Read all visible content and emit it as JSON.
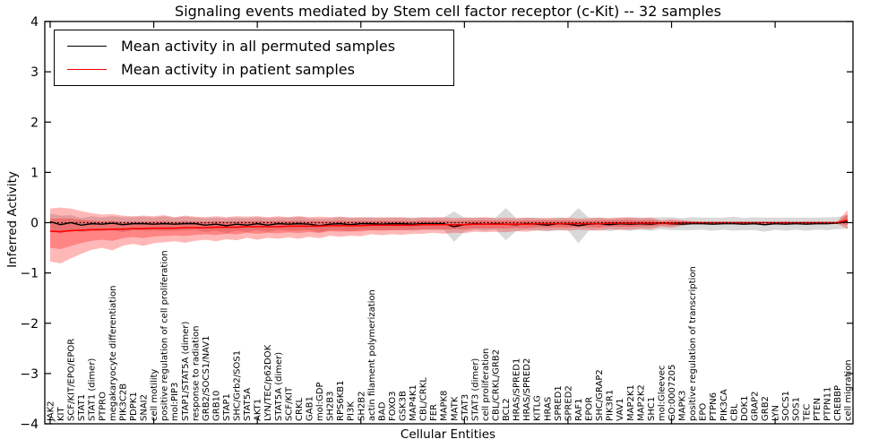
{
  "chart_data": {
    "type": "line",
    "title": "Signaling events mediated by Stem cell factor receptor (c-Kit) -- 32 samples",
    "xlabel": "Cellular Entities",
    "ylabel": "Inferred Activity",
    "ylim": [
      -4,
      4
    ],
    "yticks": [
      4,
      3,
      2,
      1,
      0,
      -1,
      -2,
      -3,
      -4
    ],
    "ytick_labels": [
      "4",
      "3",
      "2",
      "1",
      "0",
      "−1",
      "−2",
      "−3",
      "−4"
    ],
    "grid": false,
    "legend_position": "upper left",
    "legend": [
      {
        "label": "Mean activity in all permuted samples",
        "color": "#000000"
      },
      {
        "label": "Mean activity in patient samples",
        "color": "#ff0000"
      }
    ],
    "baseline": {
      "y": 0,
      "style": "dotted",
      "color": "#000000"
    },
    "categories": [
      "JAK2",
      "KIT",
      "SCF/KIT/EPO/EPOR",
      "STAT1",
      "STAT1 (dimer)",
      "PTPRO",
      "megakaryocyte differentiation",
      "PIK3C2B",
      "PDPK1",
      "SNAI2",
      "cell motility",
      "positive regulation of cell proliferation",
      "mol:PIP3",
      "STAP1/STAT5A (dimer)",
      "response to radiation",
      "GRB2/SOCS1/NAV1",
      "GRB10",
      "STAP1",
      "SHC/Grb2/SOS1",
      "STAT5A",
      "AKT1",
      "LYN/TEC/p62DOK",
      "STAT5A (dimer)",
      "SCF/KIT",
      "CRKL",
      "GAB1",
      "mol:GDP",
      "SH2B3",
      "RPS6KB1",
      "PI3K",
      "SH2B2",
      "actin filament polymerization",
      "BAD",
      "FOXO3",
      "GSK3B",
      "MAP4K1",
      "CBL/CRKL",
      "FER",
      "MAPK8",
      "MATK",
      "STAT3",
      "STAT3 (dimer)",
      "cell proliferation",
      "CBL/CRKL/GRB2",
      "BCL2",
      "HRAS/SPRED1",
      "HRAS/SPRED2",
      "KITLG",
      "HRAS",
      "SPRED1",
      "SPRED2",
      "RAF1",
      "EPOR",
      "SHC/GRAP2",
      "PIK3R1",
      "VAV1",
      "MAP2K1",
      "MAP2K2",
      "SHC1",
      "mol:Gleevec",
      "GO:0007205",
      "MAPK3",
      "positive regulation of transcription",
      "EPO",
      "PTPN6",
      "PIK3CA",
      "CBL",
      "DOK1",
      "GRAP2",
      "GRB2",
      "LYN",
      "SOCS1",
      "SOS1",
      "TEC",
      "PTEN",
      "PTPN11",
      "CREBBP",
      "cell migration"
    ],
    "series": [
      {
        "name": "Mean activity in all permuted samples",
        "color": "#000000",
        "style": "solid",
        "values": [
          0.02,
          -0.04,
          0.0,
          -0.05,
          -0.02,
          -0.03,
          -0.01,
          -0.04,
          -0.02,
          -0.02,
          -0.03,
          -0.02,
          -0.03,
          -0.02,
          -0.02,
          -0.05,
          -0.03,
          -0.06,
          -0.03,
          -0.05,
          -0.02,
          -0.05,
          -0.02,
          -0.03,
          -0.02,
          -0.03,
          -0.06,
          -0.03,
          -0.02,
          -0.04,
          -0.02,
          -0.02,
          -0.03,
          -0.02,
          -0.02,
          -0.03,
          -0.02,
          -0.02,
          -0.02,
          -0.08,
          -0.04,
          -0.02,
          -0.03,
          -0.02,
          -0.03,
          -0.04,
          -0.02,
          -0.03,
          -0.05,
          -0.02,
          -0.03,
          -0.06,
          -0.03,
          -0.02,
          -0.04,
          -0.02,
          -0.03,
          -0.02,
          -0.03,
          -0.01,
          -0.02,
          -0.03,
          -0.02,
          -0.02,
          -0.03,
          -0.02,
          -0.02,
          -0.03,
          -0.02,
          -0.04,
          -0.02,
          -0.03,
          -0.02,
          -0.03,
          -0.02,
          -0.02,
          -0.01,
          0.02
        ]
      },
      {
        "name": "Mean activity in patient samples",
        "color": "#ff0000",
        "style": "solid",
        "values": [
          -0.17,
          -0.18,
          -0.16,
          -0.15,
          -0.14,
          -0.14,
          -0.13,
          -0.13,
          -0.12,
          -0.12,
          -0.11,
          -0.11,
          -0.11,
          -0.1,
          -0.1,
          -0.1,
          -0.09,
          -0.09,
          -0.09,
          -0.08,
          -0.08,
          -0.08,
          -0.08,
          -0.07,
          -0.07,
          -0.07,
          -0.07,
          -0.06,
          -0.06,
          -0.06,
          -0.06,
          -0.05,
          -0.05,
          -0.05,
          -0.05,
          -0.05,
          -0.04,
          -0.04,
          -0.04,
          -0.04,
          -0.04,
          -0.03,
          -0.03,
          -0.03,
          -0.03,
          -0.03,
          -0.03,
          -0.02,
          -0.02,
          -0.02,
          -0.02,
          -0.02,
          -0.02,
          -0.02,
          -0.01,
          -0.01,
          -0.01,
          -0.01,
          -0.01,
          -0.01,
          -0.01,
          0.0,
          0.0,
          0.0,
          0.0,
          0.0,
          0.0,
          0.0,
          0.0,
          0.0,
          0.0,
          0.0,
          0.0,
          0.0,
          0.0,
          0.0,
          0.0,
          0.05
        ]
      }
    ],
    "bands": [
      {
        "name": "permuted-std-band",
        "around_series": 0,
        "color": "#808080",
        "opacity": 0.3,
        "halfwidth": [
          0.16,
          0.18,
          0.15,
          0.14,
          0.15,
          0.13,
          0.14,
          0.15,
          0.13,
          0.14,
          0.13,
          0.15,
          0.13,
          0.14,
          0.12,
          0.14,
          0.13,
          0.15,
          0.13,
          0.14,
          0.13,
          0.14,
          0.12,
          0.13,
          0.14,
          0.12,
          0.14,
          0.12,
          0.13,
          0.14,
          0.12,
          0.13,
          0.12,
          0.13,
          0.12,
          0.13,
          0.12,
          0.13,
          0.12,
          0.3,
          0.14,
          0.12,
          0.13,
          0.12,
          0.32,
          0.13,
          0.12,
          0.13,
          0.12,
          0.13,
          0.12,
          0.35,
          0.13,
          0.12,
          0.13,
          0.12,
          0.13,
          0.12,
          0.13,
          0.12,
          0.13,
          0.12,
          0.13,
          0.12,
          0.13,
          0.12,
          0.14,
          0.12,
          0.13,
          0.14,
          0.12,
          0.13,
          0.12,
          0.13,
          0.12,
          0.13,
          0.12,
          0.14
        ]
      },
      {
        "name": "patient-outer-band",
        "around_series": 1,
        "color": "#ff0000",
        "opacity": 0.28,
        "up": [
          0.45,
          0.48,
          0.44,
          0.38,
          0.33,
          0.3,
          0.3,
          0.27,
          0.25,
          0.26,
          0.24,
          0.26,
          0.22,
          0.24,
          0.22,
          0.21,
          0.22,
          0.2,
          0.22,
          0.2,
          0.21,
          0.19,
          0.21,
          0.18,
          0.2,
          0.18,
          0.19,
          0.17,
          0.18,
          0.16,
          0.17,
          0.15,
          0.16,
          0.15,
          0.16,
          0.14,
          0.15,
          0.14,
          0.15,
          0.13,
          0.14,
          0.13,
          0.14,
          0.12,
          0.13,
          0.12,
          0.13,
          0.11,
          0.12,
          0.11,
          0.12,
          0.1,
          0.11,
          0.12,
          0.1,
          0.11,
          0.12,
          0.1,
          0.11,
          0.06,
          0.08,
          0.05,
          0.03,
          0.02,
          0.02,
          0.02,
          0.02,
          0.02,
          0.02,
          0.02,
          0.02,
          0.02,
          0.02,
          0.02,
          0.02,
          0.02,
          0.02,
          0.2
        ],
        "down": [
          0.6,
          0.63,
          0.55,
          0.47,
          0.4,
          0.36,
          0.42,
          0.33,
          0.3,
          0.34,
          0.3,
          0.28,
          0.26,
          0.3,
          0.26,
          0.24,
          0.28,
          0.24,
          0.26,
          0.22,
          0.26,
          0.22,
          0.24,
          0.22,
          0.25,
          0.21,
          0.24,
          0.2,
          0.22,
          0.2,
          0.21,
          0.18,
          0.2,
          0.18,
          0.19,
          0.17,
          0.18,
          0.16,
          0.18,
          0.16,
          0.17,
          0.15,
          0.16,
          0.15,
          0.16,
          0.14,
          0.15,
          0.13,
          0.14,
          0.13,
          0.14,
          0.12,
          0.13,
          0.14,
          0.12,
          0.13,
          0.13,
          0.11,
          0.12,
          0.07,
          0.09,
          0.06,
          0.03,
          0.02,
          0.02,
          0.02,
          0.02,
          0.02,
          0.02,
          0.02,
          0.02,
          0.02,
          0.02,
          0.02,
          0.02,
          0.02,
          0.02,
          0.18
        ]
      },
      {
        "name": "patient-inner-band",
        "around_series": 1,
        "color": "#ff0000",
        "opacity": 0.28,
        "scale_of": "patient-outer-band",
        "scale": 0.55
      }
    ]
  }
}
